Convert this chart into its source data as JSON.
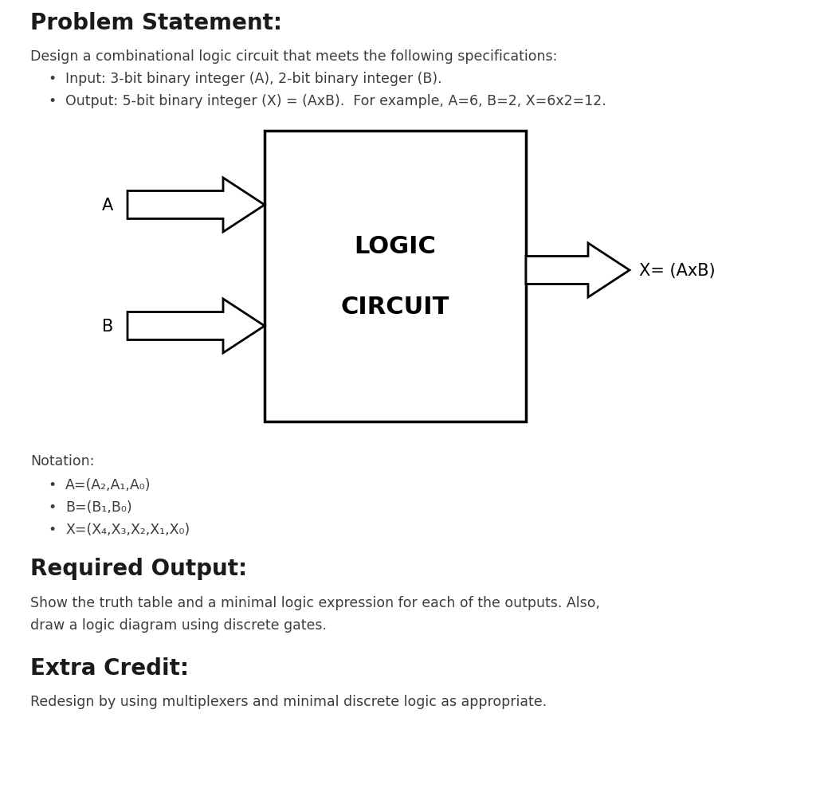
{
  "bg_color": "#ffffff",
  "title": "Problem Statement:",
  "title_color": "#1a1a1a",
  "title_fontsize": 20,
  "intro_text": "Design a combinational logic circuit that meets the following specifications:",
  "intro_color": "#3d3d3d",
  "intro_fontsize": 12.5,
  "bullet1": "Input: 3-bit binary integer (A), 2-bit binary integer (B).",
  "bullet2": "Output: 5-bit binary integer (X) = (AxB).  For example, A=6, B=2, X=6x2=12.",
  "bullet_color": "#3d3d3d",
  "bullet_fontsize": 12.5,
  "notation_label": "Notation:",
  "notation_color": "#3d3d3d",
  "notation_fontsize": 12.5,
  "notation_b1": "A=(A₂,A₁,A₀)",
  "notation_b2": "B=(B₁,B₀)",
  "notation_b3": "X=(X₄,X₃,X₂,X₁,X₀)",
  "req_title": "Required Output:",
  "req_title_fontsize": 20,
  "req_text1": "Show the truth table and a minimal logic expression for each of the outputs. Also,",
  "req_text2": "draw a logic diagram using discrete gates.",
  "req_color": "#3d3d3d",
  "req_fontsize": 12.5,
  "extra_title": "Extra Credit:",
  "extra_title_fontsize": 20,
  "extra_text": "Redesign by using multiplexers and minimal discrete logic as appropriate.",
  "extra_color": "#3d3d3d",
  "extra_fontsize": 12.5,
  "logic_label1": "LOGIC",
  "logic_label2": "CIRCUIT",
  "logic_fontsize": 22,
  "A_label": "A",
  "B_label": "B",
  "X_label": "X= (AxB)",
  "label_fontsize": 15,
  "arrow_color": "#000000",
  "teal_color": "#3399aa"
}
